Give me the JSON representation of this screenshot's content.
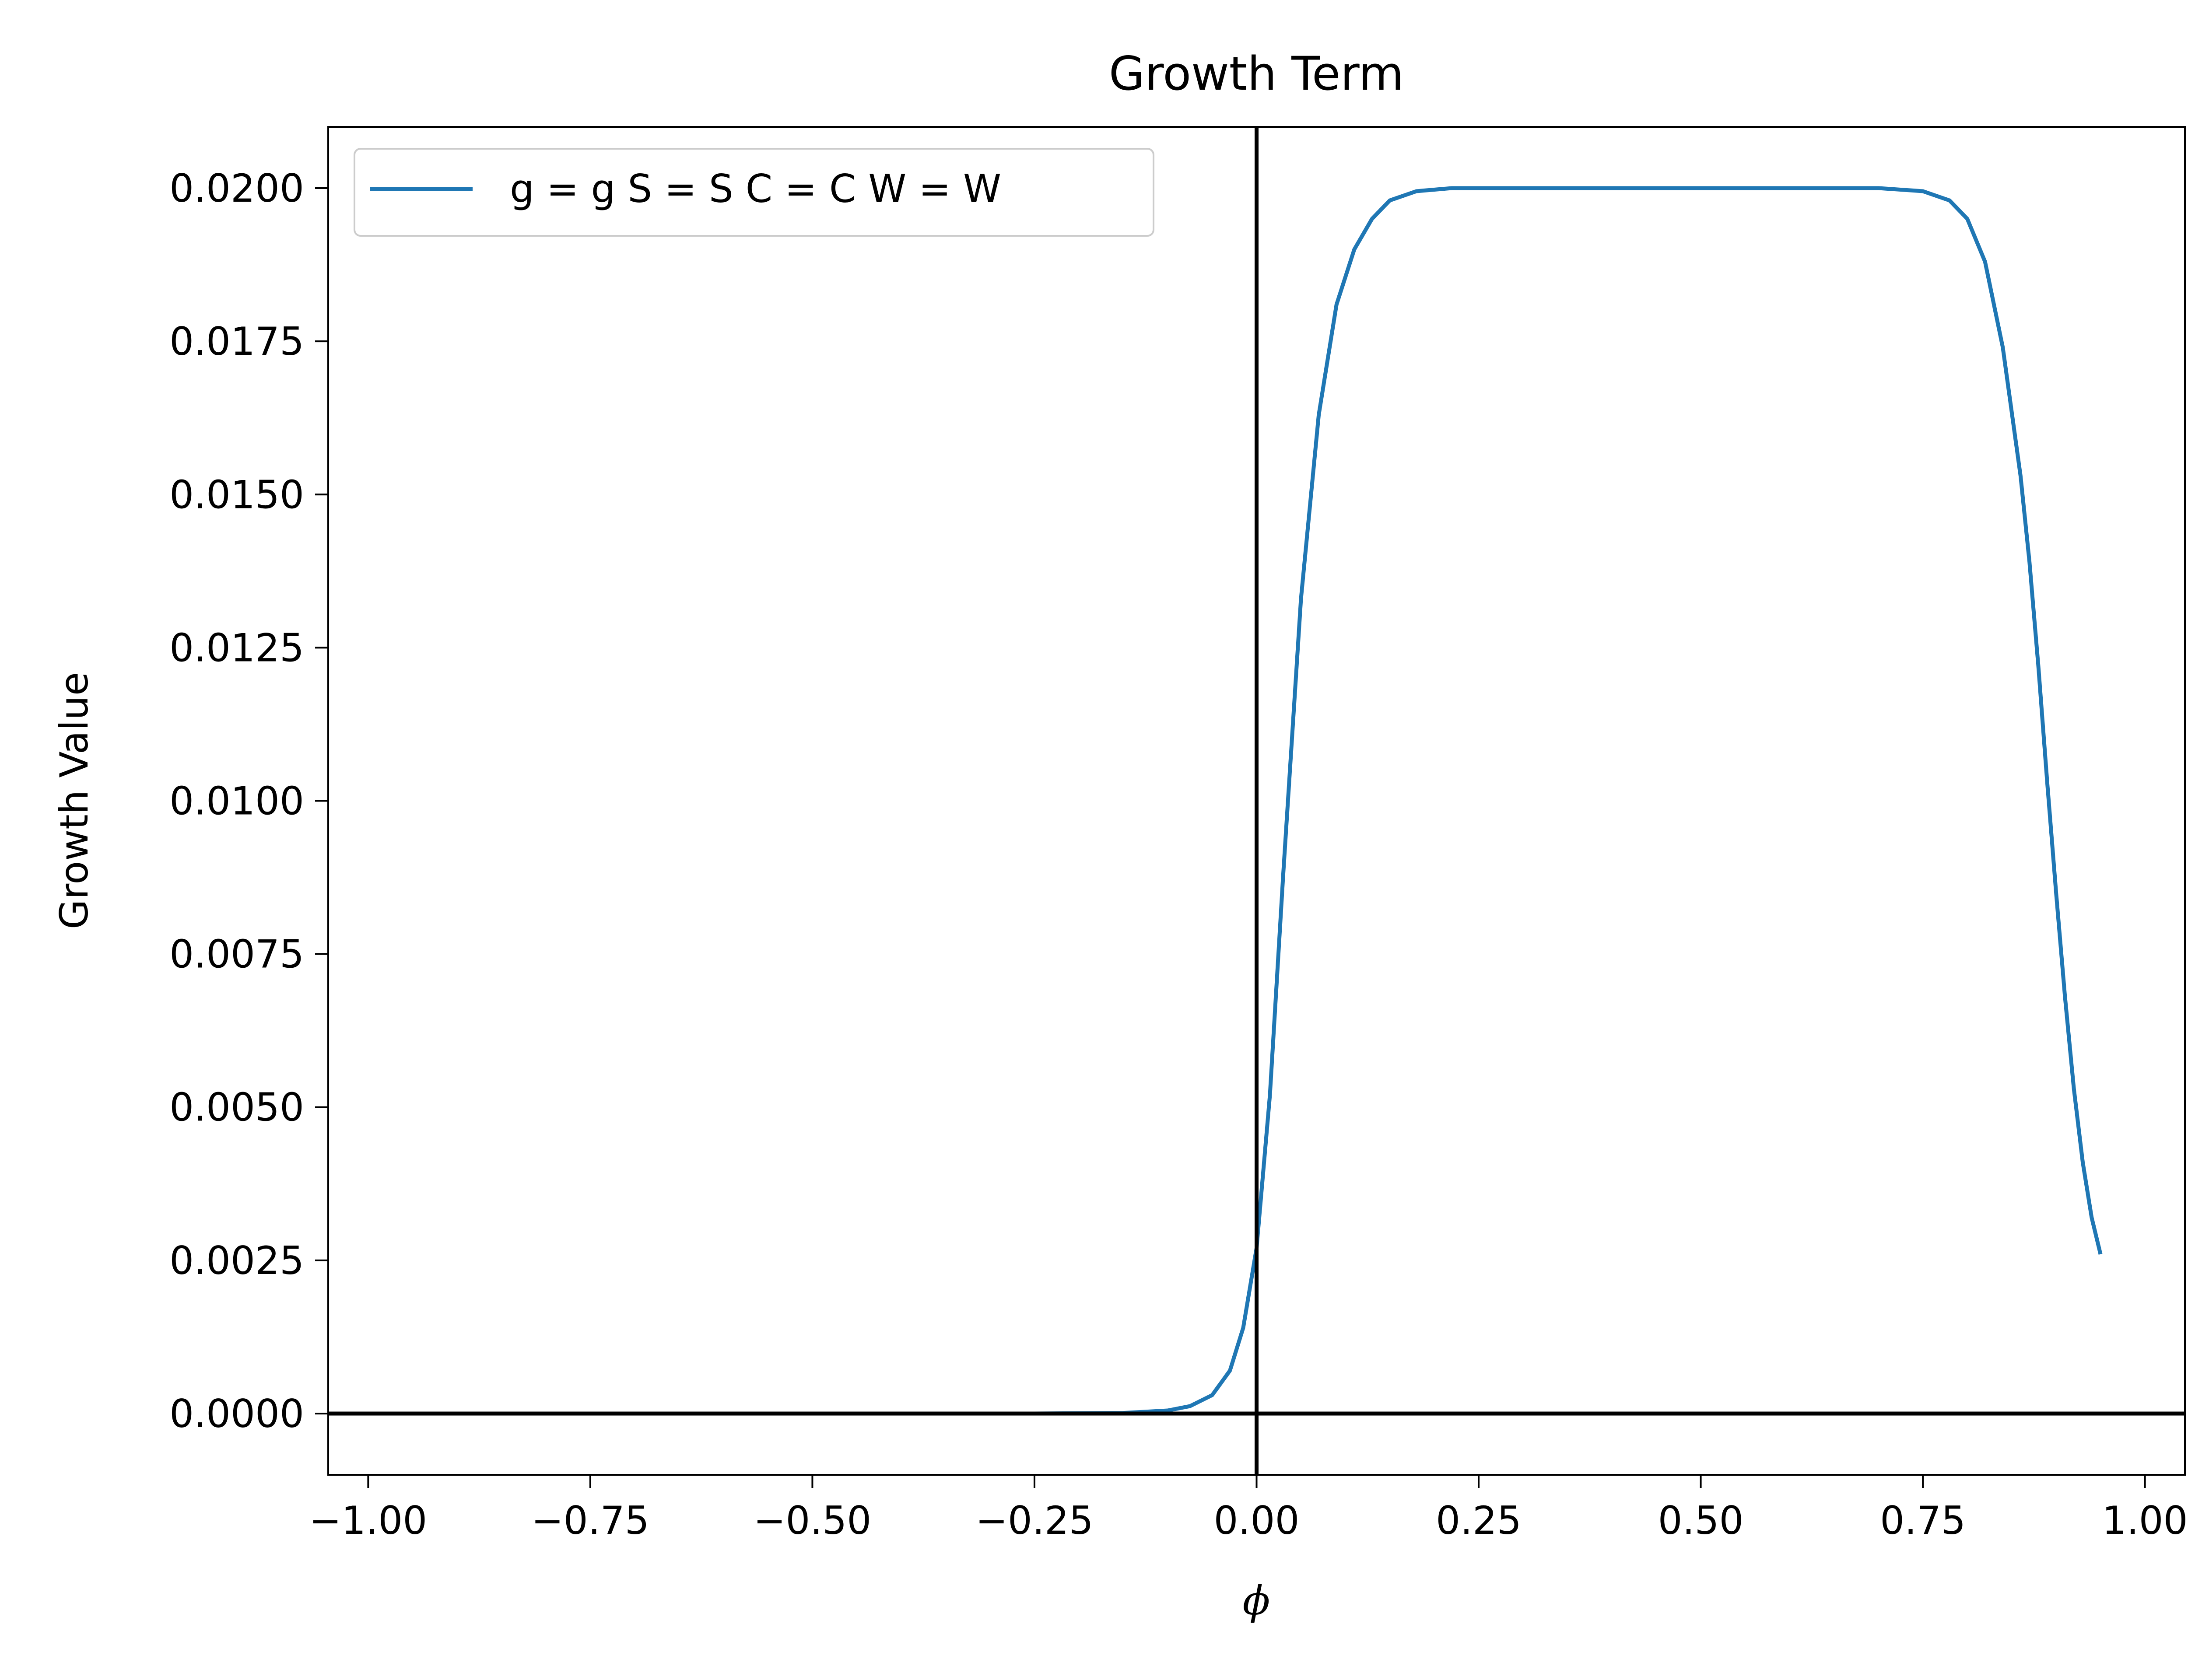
{
  "chart_data": {
    "type": "line",
    "title": "Growth Term",
    "xlabel": "ϕ",
    "ylabel": "Growth Value",
    "xlim": [
      -1.045,
      1.045
    ],
    "ylim": [
      -0.001,
      0.021
    ],
    "xticks": [
      -1.0,
      -0.75,
      -0.5,
      -0.25,
      0.0,
      0.25,
      0.5,
      0.75,
      1.0
    ],
    "xtick_labels": [
      "−1.00",
      "−0.75",
      "−0.50",
      "−0.25",
      "0.00",
      "0.25",
      "0.50",
      "0.75",
      "1.00"
    ],
    "yticks": [
      0.0,
      0.0025,
      0.005,
      0.0075,
      0.01,
      0.0125,
      0.015,
      0.0175,
      0.02
    ],
    "ytick_labels": [
      "0.0000",
      "0.0025",
      "0.0050",
      "0.0075",
      "0.0100",
      "0.0125",
      "0.0150",
      "0.0175",
      "0.0200"
    ],
    "grid": false,
    "legend_position": "upper-left",
    "reference_lines": [
      {
        "orientation": "horizontal",
        "value": 0.0,
        "color": "#000000"
      },
      {
        "orientation": "vertical",
        "value": 0.0,
        "color": "#000000"
      }
    ],
    "series": [
      {
        "name": "g = g S = S C = C W = W",
        "color": "#1f77b4",
        "x": [
          -0.95,
          -0.5,
          -0.25,
          -0.15,
          -0.1,
          -0.075,
          -0.05,
          -0.03,
          -0.015,
          0.0,
          0.015,
          0.03,
          0.05,
          0.07,
          0.09,
          0.11,
          0.13,
          0.15,
          0.18,
          0.22,
          0.3,
          0.5,
          0.7,
          0.75,
          0.78,
          0.8,
          0.82,
          0.84,
          0.86,
          0.87,
          0.88,
          0.89,
          0.9,
          0.91,
          0.92,
          0.93,
          0.94,
          0.95
        ],
        "y": [
          0.0,
          0.0,
          0.0,
          1e-05,
          5e-05,
          0.00012,
          0.0003,
          0.0007,
          0.0014,
          0.0027,
          0.0052,
          0.0088,
          0.0133,
          0.0163,
          0.0181,
          0.019,
          0.0195,
          0.0198,
          0.01995,
          0.02,
          0.02,
          0.02,
          0.02,
          0.01995,
          0.0198,
          0.0195,
          0.0188,
          0.0174,
          0.0153,
          0.0139,
          0.0122,
          0.0103,
          0.0085,
          0.0068,
          0.0053,
          0.0041,
          0.0032,
          0.0026
        ]
      }
    ]
  },
  "colors": {
    "series": "#1f77b4",
    "axes": "#000000",
    "legend_border": "#cccccc"
  }
}
